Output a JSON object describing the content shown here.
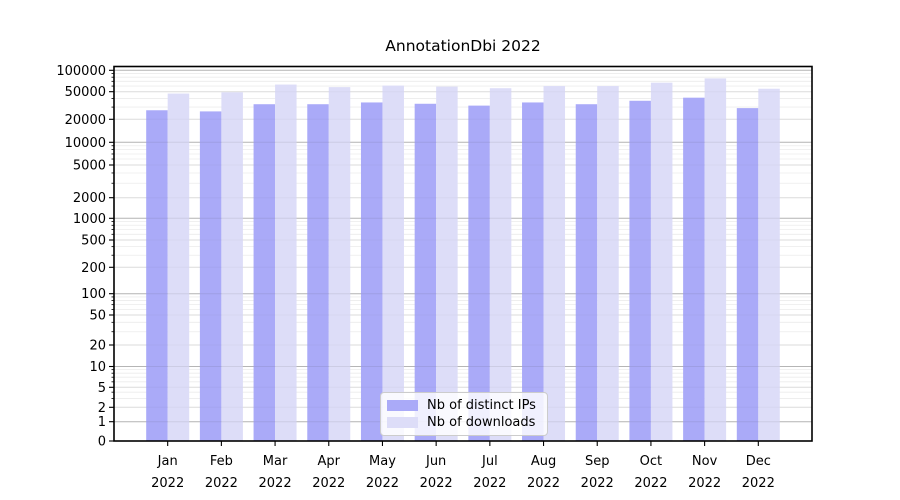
{
  "title": "AnnotationDbi 2022",
  "chart_data": {
    "type": "bar",
    "title": "AnnotationDbi 2022",
    "yscale": "symlog",
    "ylim": [
      0,
      100000
    ],
    "grid": true,
    "legend_position": "lower center",
    "categories": [
      "Jan",
      "Feb",
      "Mar",
      "Apr",
      "May",
      "Jun",
      "Jul",
      "Aug",
      "Sep",
      "Oct",
      "Nov",
      "Dec"
    ],
    "x_year_label": "2022",
    "yticks": [
      0,
      1,
      2,
      5,
      10,
      20,
      50,
      100,
      200,
      500,
      1000,
      2000,
      5000,
      10000,
      20000,
      50000,
      100000
    ],
    "series": [
      {
        "name": "Nb of distinct IPs",
        "color": "#aaaaf8",
        "values": [
          27000,
          26000,
          33000,
          33000,
          35000,
          33500,
          31500,
          35000,
          33000,
          37000,
          41000,
          29000
        ]
      },
      {
        "name": "Nb of downloads",
        "color": "#ddddf8",
        "values": [
          47000,
          49000,
          63000,
          58000,
          61000,
          59000,
          56000,
          60000,
          60000,
          67000,
          77000,
          55000
        ]
      }
    ]
  }
}
